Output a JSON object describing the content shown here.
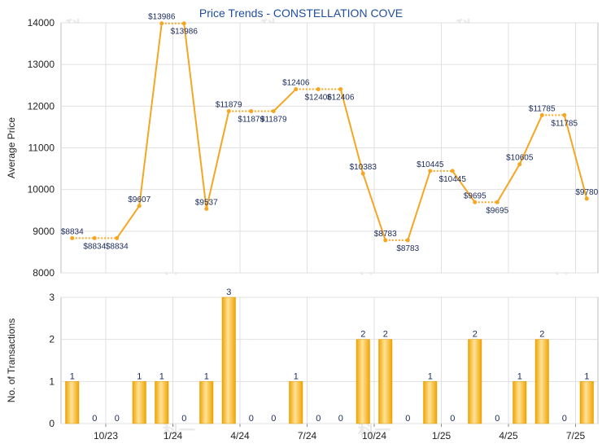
{
  "chart_data": [
    {
      "type": "line",
      "title": "Price Trends - CONSTELLATION COVE",
      "ylabel": "Average Price",
      "ylim": [
        8000,
        14000
      ],
      "yticks": [
        8000,
        9000,
        10000,
        11000,
        12000,
        13000,
        14000
      ],
      "grid": true,
      "line_color": "#f5a623",
      "values": [
        8834,
        8834,
        8834,
        9607,
        13986,
        13986,
        9537,
        11879,
        11879,
        11879,
        12406,
        12406,
        12406,
        10383,
        8783,
        8783,
        10445,
        10445,
        9695,
        9695,
        10605,
        11785,
        11785,
        9780
      ],
      "point_labels": [
        "$8834",
        "$8834",
        "$8834",
        "$9607",
        "$13986",
        "$13986",
        "$9537",
        "$11879",
        "$11879",
        "$11879",
        "$12406",
        "$12406",
        "$12406",
        "$10383",
        "$8783",
        "$8783",
        "$10445",
        "$10445",
        "$9695",
        "$9695",
        "$10605",
        "$11785",
        "$11785",
        "$9780"
      ]
    },
    {
      "type": "bar",
      "ylabel": "No. of Transactions",
      "ylim": [
        0,
        3
      ],
      "yticks": [
        0,
        1,
        2,
        3
      ],
      "grid": true,
      "bar_color": "#f5a623",
      "values": [
        1,
        0,
        0,
        1,
        1,
        0,
        1,
        3,
        0,
        0,
        1,
        0,
        0,
        2,
        2,
        0,
        1,
        0,
        2,
        0,
        1,
        2,
        0,
        1
      ],
      "x_tick_labels": [
        "10/23",
        "1/24",
        "4/24",
        "7/24",
        "10/24",
        "1/25",
        "4/25",
        "7/25"
      ],
      "x_tick_positions": [
        2,
        5,
        8,
        11,
        14,
        17,
        20,
        23
      ]
    }
  ],
  "watermark": "科一"
}
